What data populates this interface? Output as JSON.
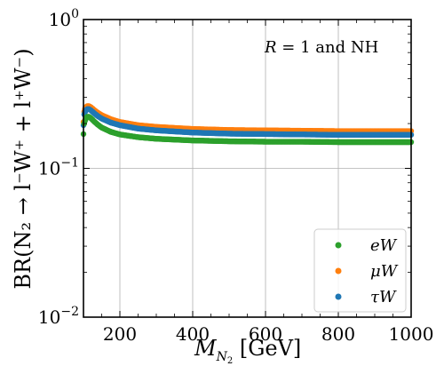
{
  "chart_data": {
    "type": "scatter",
    "xlabel": "M_{N_2} [GeV]",
    "xlabel_main": "M",
    "xlabel_sub": "N",
    "xlabel_subsub": "2",
    "xlabel_unit": " [GeV]",
    "ylabel": "BR(N₂ → l⁻W⁺ + l⁺W⁻)",
    "annotation": "R = 1 and NH",
    "annotation_var": "R",
    "annotation_rest": " = 1 and NH",
    "xlim": [
      100,
      1000
    ],
    "ylim": [
      0.01,
      1
    ],
    "yscale": "log",
    "grid": true,
    "legend_position": "lower-right",
    "x_ticks": [
      {
        "value": 200,
        "label": "200"
      },
      {
        "value": 400,
        "label": "400"
      },
      {
        "value": 600,
        "label": "600"
      },
      {
        "value": 800,
        "label": "800"
      },
      {
        "value": 1000,
        "label": "1000"
      }
    ],
    "y_ticks": [
      {
        "value": 1,
        "base": "10",
        "exp": "0"
      },
      {
        "value": 0.1,
        "base": "10",
        "exp": "−1"
      },
      {
        "value": 0.01,
        "base": "10",
        "exp": "−2"
      }
    ],
    "series": [
      {
        "name": "μW",
        "color": "#ff7f0e",
        "x": [
          100,
          102,
          105,
          110,
          115,
          120,
          125,
          130,
          140,
          150,
          175,
          200,
          250,
          300,
          400,
          500,
          600,
          700,
          800,
          900,
          1000
        ],
        "y": [
          0.205,
          0.24,
          0.255,
          0.262,
          0.262,
          0.258,
          0.252,
          0.246,
          0.236,
          0.228,
          0.214,
          0.205,
          0.195,
          0.19,
          0.184,
          0.181,
          0.18,
          0.179,
          0.178,
          0.178,
          0.178
        ]
      },
      {
        "name": "τW",
        "color": "#1f77b4",
        "x": [
          100,
          102,
          105,
          110,
          115,
          120,
          125,
          130,
          140,
          150,
          175,
          200,
          250,
          300,
          400,
          500,
          600,
          700,
          800,
          900,
          1000
        ],
        "y": [
          0.195,
          0.23,
          0.242,
          0.25,
          0.25,
          0.246,
          0.24,
          0.234,
          0.224,
          0.216,
          0.203,
          0.195,
          0.185,
          0.18,
          0.174,
          0.171,
          0.17,
          0.169,
          0.168,
          0.168,
          0.168
        ]
      },
      {
        "name": "eW",
        "color": "#2ca02c",
        "x": [
          100,
          102,
          105,
          110,
          115,
          120,
          125,
          130,
          140,
          150,
          175,
          200,
          250,
          300,
          400,
          500,
          600,
          700,
          800,
          900,
          1000
        ],
        "y": [
          0.17,
          0.2,
          0.212,
          0.222,
          0.222,
          0.218,
          0.212,
          0.206,
          0.196,
          0.188,
          0.176,
          0.169,
          0.162,
          0.158,
          0.154,
          0.152,
          0.151,
          0.151,
          0.15,
          0.15,
          0.15
        ]
      }
    ],
    "legend": [
      {
        "label": "eW",
        "var": "e",
        "rest": "W",
        "color": "#2ca02c"
      },
      {
        "label": "μW",
        "var": "μ",
        "rest": "W",
        "color": "#ff7f0e"
      },
      {
        "label": "τW",
        "var": "τ",
        "rest": "W",
        "color": "#1f77b4"
      }
    ]
  }
}
